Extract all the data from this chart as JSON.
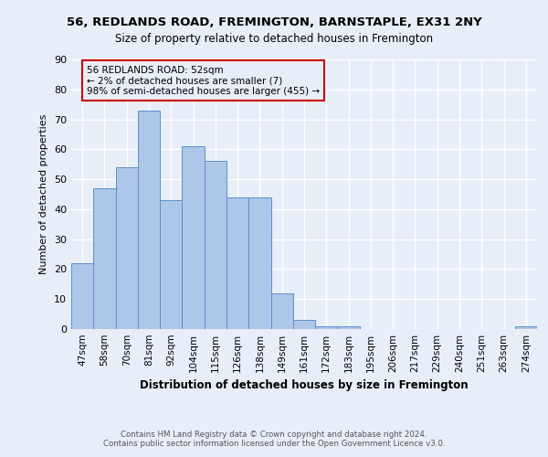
{
  "title": "56, REDLANDS ROAD, FREMINGTON, BARNSTAPLE, EX31 2NY",
  "subtitle": "Size of property relative to detached houses in Fremington",
  "xlabel": "Distribution of detached houses by size in Fremington",
  "ylabel": "Number of detached properties",
  "bar_labels": [
    "47sqm",
    "58sqm",
    "70sqm",
    "81sqm",
    "92sqm",
    "104sqm",
    "115sqm",
    "126sqm",
    "138sqm",
    "149sqm",
    "161sqm",
    "172sqm",
    "183sqm",
    "195sqm",
    "206sqm",
    "217sqm",
    "229sqm",
    "240sqm",
    "251sqm",
    "263sqm",
    "274sqm"
  ],
  "bar_values": [
    22,
    47,
    54,
    73,
    43,
    61,
    56,
    44,
    44,
    12,
    3,
    1,
    1,
    0,
    0,
    0,
    0,
    0,
    0,
    0,
    1
  ],
  "bar_color": "#aec6e8",
  "bar_edge_color": "#5b8fc9",
  "annotation_box_text": "56 REDLANDS ROAD: 52sqm\n← 2% of detached houses are smaller (7)\n98% of semi-detached houses are larger (455) →",
  "annotation_box_color": "#cc0000",
  "footer_line1": "Contains HM Land Registry data © Crown copyright and database right 2024.",
  "footer_line2": "Contains public sector information licensed under the Open Government Licence v3.0.",
  "ylim": [
    0,
    90
  ],
  "yticks": [
    0,
    10,
    20,
    30,
    40,
    50,
    60,
    70,
    80,
    90
  ],
  "bg_color": "#e8eef7",
  "grid_color": "#ffffff"
}
